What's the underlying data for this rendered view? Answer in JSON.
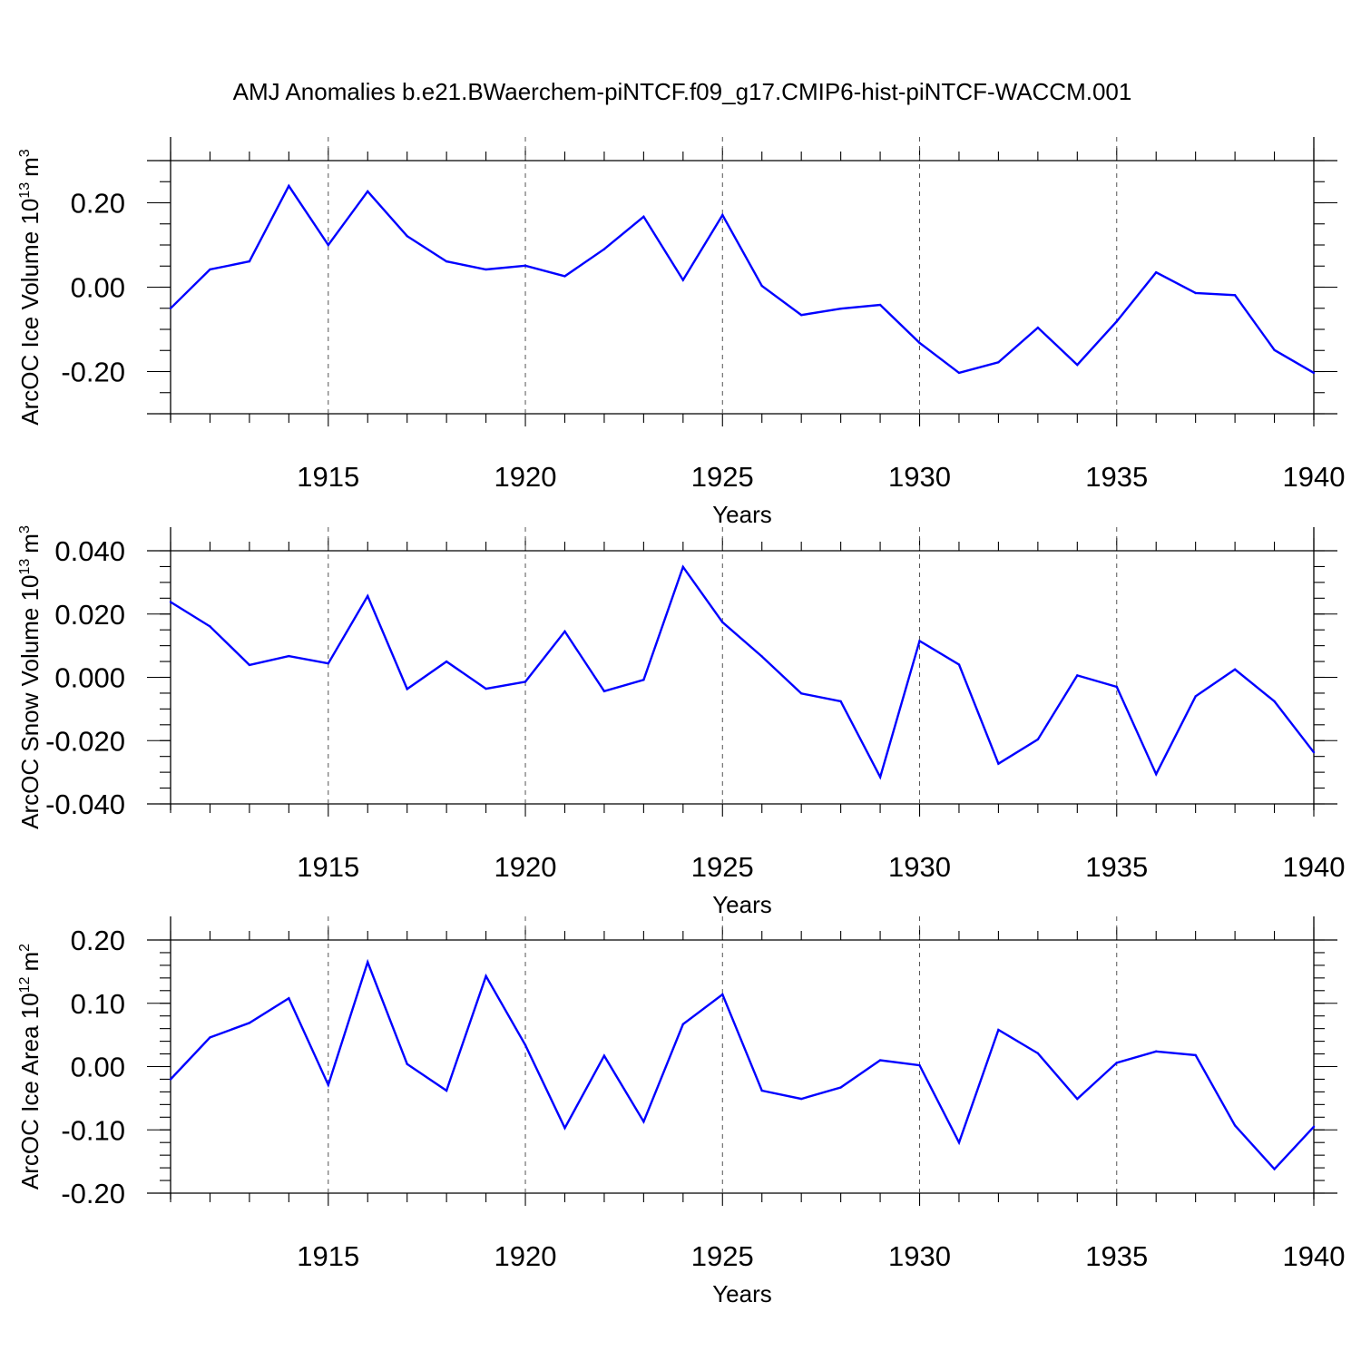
{
  "title": "AMJ Anomalies b.e21.BWaerchem-piNTCF.f09_g17.CMIP6-hist-piNTCF-WACCM.001",
  "line_color": "#0000ff",
  "chart_data": [
    {
      "type": "line",
      "ylabel_main": "ArcOC Ice Volume 10",
      "ylabel_exp": "13",
      "ylabel_unit": "m",
      "ylabel_unit_exp": "3",
      "xlabel": "Years",
      "xlim": [
        1911,
        1940
      ],
      "ylim": [
        -0.3,
        0.3
      ],
      "x_ticks": [
        1915,
        1920,
        1925,
        1930,
        1935,
        1940
      ],
      "x_tick_labels": [
        "1915",
        "1920",
        "1925",
        "1930",
        "1935",
        "1940"
      ],
      "y_ticks": [
        0.2,
        0.0,
        -0.2
      ],
      "y_tick_labels": [
        "0.20",
        "0.00",
        "-0.20"
      ],
      "y_minor_step": 0.05,
      "vertical_dashed_grid": [
        1915,
        1920,
        1925,
        1930,
        1935
      ],
      "x": [
        1911,
        1912,
        1913,
        1914,
        1915,
        1916,
        1917,
        1918,
        1919,
        1920,
        1921,
        1922,
        1923,
        1924,
        1925,
        1926,
        1927,
        1928,
        1929,
        1930,
        1931,
        1932,
        1933,
        1934,
        1935,
        1936,
        1937,
        1938,
        1939,
        1940
      ],
      "values": [
        -0.05,
        0.042,
        0.061,
        0.24,
        0.1,
        0.227,
        0.121,
        0.061,
        0.042,
        0.051,
        0.026,
        0.09,
        0.167,
        0.017,
        0.171,
        0.003,
        -0.066,
        -0.051,
        -0.042,
        -0.132,
        -0.203,
        -0.178,
        -0.096,
        -0.184,
        -0.081,
        0.035,
        -0.014,
        -0.019,
        -0.149,
        -0.203
      ]
    },
    {
      "type": "line",
      "ylabel_main": "ArcOC Snow Volume 10",
      "ylabel_exp": "13",
      "ylabel_unit": "m",
      "ylabel_unit_exp": "3",
      "xlabel": "Years",
      "xlim": [
        1911,
        1940
      ],
      "ylim": [
        -0.04,
        0.04
      ],
      "x_ticks": [
        1915,
        1920,
        1925,
        1930,
        1935,
        1940
      ],
      "x_tick_labels": [
        "1915",
        "1920",
        "1925",
        "1930",
        "1935",
        "1940"
      ],
      "y_ticks": [
        0.04,
        0.02,
        0.0,
        -0.02,
        -0.04
      ],
      "y_tick_labels": [
        "0.040",
        "0.020",
        "0.000",
        "-0.020",
        "-0.040"
      ],
      "y_minor_step": 0.005,
      "vertical_dashed_grid": [
        1915,
        1920,
        1925,
        1930,
        1935
      ],
      "x": [
        1911,
        1912,
        1913,
        1914,
        1915,
        1916,
        1917,
        1918,
        1919,
        1920,
        1921,
        1922,
        1923,
        1924,
        1925,
        1926,
        1927,
        1928,
        1929,
        1930,
        1931,
        1932,
        1933,
        1934,
        1935,
        1936,
        1937,
        1938,
        1939,
        1940
      ],
      "values": [
        0.0238,
        0.0161,
        0.0039,
        0.0067,
        0.0044,
        0.0257,
        -0.0037,
        0.005,
        -0.0036,
        -0.0014,
        0.0145,
        -0.0044,
        -0.0008,
        0.0349,
        0.0174,
        0.0066,
        -0.0051,
        -0.0076,
        -0.0315,
        0.0115,
        0.004,
        -0.0273,
        -0.0196,
        0.0006,
        -0.003,
        -0.0306,
        -0.006,
        0.0025,
        -0.0076,
        -0.0237
      ]
    },
    {
      "type": "line",
      "ylabel_main": "ArcOC Ice Area 10",
      "ylabel_exp": "12",
      "ylabel_unit": "m",
      "ylabel_unit_exp": "2",
      "xlabel": "Years",
      "xlim": [
        1911,
        1940
      ],
      "ylim": [
        -0.2,
        0.2
      ],
      "x_ticks": [
        1915,
        1920,
        1925,
        1930,
        1935,
        1940
      ],
      "x_tick_labels": [
        "1915",
        "1920",
        "1925",
        "1930",
        "1935",
        "1940"
      ],
      "y_ticks": [
        0.2,
        0.1,
        0.0,
        -0.1,
        -0.2
      ],
      "y_tick_labels": [
        "0.20",
        "0.10",
        "0.00",
        "-0.10",
        "-0.20"
      ],
      "y_minor_step": 0.02,
      "vertical_dashed_grid": [
        1915,
        1920,
        1925,
        1930,
        1935
      ],
      "x": [
        1911,
        1912,
        1913,
        1914,
        1915,
        1916,
        1917,
        1918,
        1919,
        1920,
        1921,
        1922,
        1923,
        1924,
        1925,
        1926,
        1927,
        1928,
        1929,
        1930,
        1931,
        1932,
        1933,
        1934,
        1935,
        1936,
        1937,
        1938,
        1939,
        1940
      ],
      "values": [
        -0.02,
        0.046,
        0.069,
        0.108,
        -0.029,
        0.165,
        0.004,
        -0.038,
        0.143,
        0.034,
        -0.097,
        0.017,
        -0.087,
        0.067,
        0.114,
        -0.038,
        -0.051,
        -0.033,
        0.01,
        0.002,
        -0.12,
        0.058,
        0.021,
        -0.051,
        0.006,
        0.024,
        0.018,
        -0.093,
        -0.162,
        -0.095
      ]
    }
  ]
}
